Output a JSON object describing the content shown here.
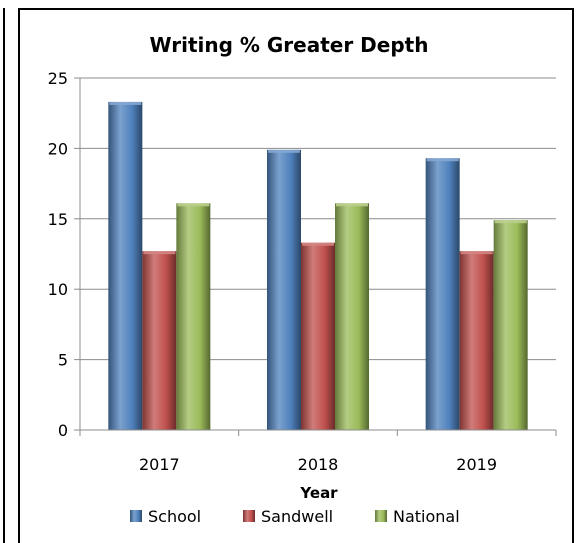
{
  "chart_data": {
    "type": "bar",
    "title": "Writing % Greater Depth",
    "xlabel": "Year",
    "ylabel": "",
    "categories": [
      "2017",
      "2018",
      "2019"
    ],
    "series": [
      {
        "name": "School",
        "values": [
          23.3,
          19.9,
          19.3
        ],
        "color": "#4f81bd"
      },
      {
        "name": "Sandwell",
        "values": [
          12.7,
          13.3,
          12.7
        ],
        "color": "#c0504d"
      },
      {
        "name": "National",
        "values": [
          16.1,
          16.1,
          14.9
        ],
        "color": "#9bbb59"
      }
    ],
    "ylim": [
      0,
      25
    ],
    "yticks": [
      0,
      5,
      10,
      15,
      20,
      25
    ],
    "grid": true,
    "legend_position": "bottom"
  }
}
